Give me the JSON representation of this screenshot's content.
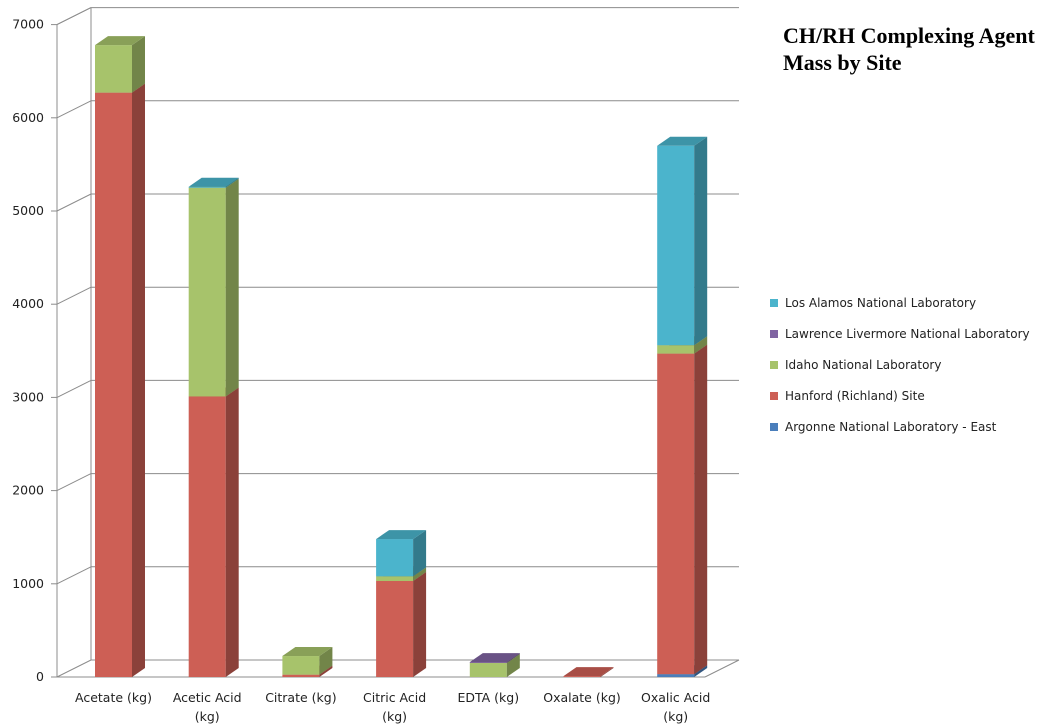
{
  "chart_data": {
    "type": "bar",
    "stacked": true,
    "style": "3d",
    "title": "CH/RH Complexing Agent Mass by Site",
    "xlabel": "",
    "ylabel": "",
    "ylim": [
      0,
      7000
    ],
    "yticks": [
      "0",
      "1000",
      "2000",
      "3000",
      "4000",
      "5000",
      "6000",
      "7000"
    ],
    "grid": true,
    "legend_position": "right",
    "categories": [
      [
        "Acetate (kg)"
      ],
      [
        "Acetic Acid",
        "(kg)"
      ],
      [
        "Citrate (kg)"
      ],
      [
        "Citric Acid",
        "(kg)"
      ],
      [
        "EDTA (kg)"
      ],
      [
        "Oxalate (kg)"
      ],
      [
        "Oxalic Acid",
        "(kg)"
      ]
    ],
    "series": [
      {
        "name": "Argonne National Laboratory - East",
        "color": "#4a7ebb",
        "values": [
          0,
          0,
          0,
          0,
          0,
          0,
          30
        ]
      },
      {
        "name": "Hanford (Richland) Site",
        "color": "#cd5f55",
        "values": [
          6270,
          3010,
          25,
          1030,
          0,
          10,
          3440
        ]
      },
      {
        "name": "Idaho National Laboratory",
        "color": "#a7c36b",
        "values": [
          510,
          2240,
          200,
          50,
          150,
          0,
          90
        ]
      },
      {
        "name": "Lawrence Livermore National Laboratory",
        "color": "#8064a2",
        "values": [
          0,
          0,
          0,
          0,
          10,
          0,
          0
        ]
      },
      {
        "name": "Los Alamos National Laboratory",
        "color": "#4bb4cc",
        "values": [
          0,
          10,
          0,
          400,
          0,
          0,
          2140
        ]
      }
    ],
    "legend_order": [
      4,
      3,
      2,
      1,
      0
    ]
  }
}
